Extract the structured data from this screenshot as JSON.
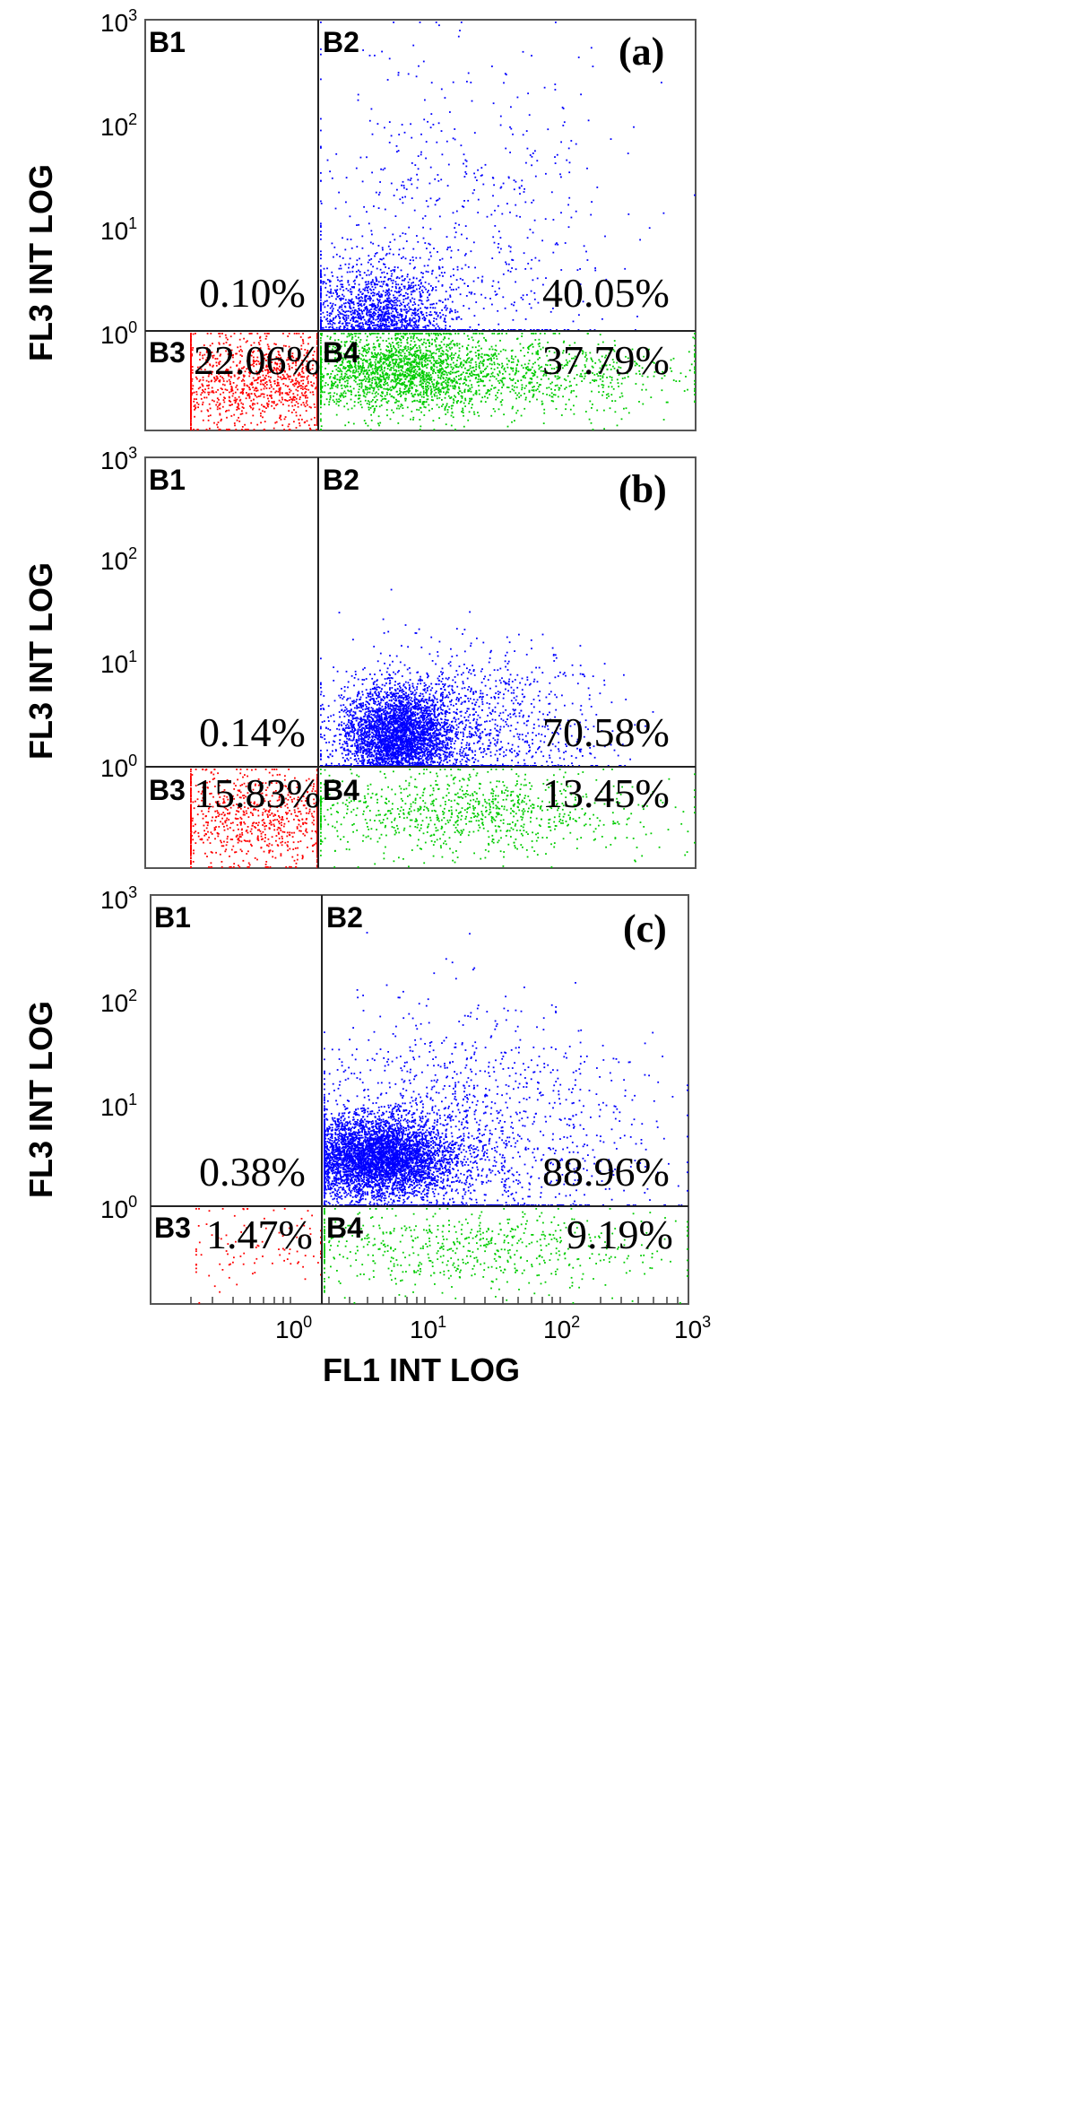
{
  "chart_data": [
    {
      "type": "scatter",
      "title": "(a)",
      "xlabel": "FL1 INT LOG",
      "ylabel": "FL3 INT LOG",
      "xscale": "log",
      "yscale": "log",
      "xlim": [
        0.1,
        1000
      ],
      "ylim": [
        0.1,
        1000
      ],
      "x_ticks": [
        "10^0",
        "10^1",
        "10^2",
        "10^3"
      ],
      "y_ticks": [
        "10^3",
        "10^2",
        "10^1",
        "10^0"
      ],
      "gate": {
        "x": 1.9,
        "y": 1
      },
      "quadrants": [
        {
          "name": "B1",
          "percent": "0.10%"
        },
        {
          "name": "B2",
          "percent": "40.05%"
        },
        {
          "name": "B3",
          "percent": "22.06%"
        },
        {
          "name": "B4",
          "percent": "37.79%"
        }
      ],
      "colors": {
        "B2": "#0000ff",
        "B3": "#ff0000",
        "B4": "#00cc00"
      }
    },
    {
      "type": "scatter",
      "title": "(b)",
      "xlabel": "",
      "ylabel": "FL3 INT LOG",
      "xscale": "log",
      "yscale": "log",
      "xlim": [
        0.1,
        1000
      ],
      "ylim": [
        0.1,
        1000
      ],
      "y_ticks": [
        "10^3",
        "10^2",
        "10^1",
        "10^0"
      ],
      "gate": {
        "x": 1.9,
        "y": 1
      },
      "quadrants": [
        {
          "name": "B1",
          "percent": "0.14%"
        },
        {
          "name": "B2",
          "percent": "70.58%"
        },
        {
          "name": "B3",
          "percent": "15.83%"
        },
        {
          "name": "B4",
          "percent": "13.45%"
        }
      ],
      "colors": {
        "B2": "#0000ff",
        "B3": "#ff0000",
        "B4": "#00cc00"
      }
    },
    {
      "type": "scatter",
      "title": "(c)",
      "xlabel": "FL1 INT LOG",
      "ylabel": "FL3 INT LOG",
      "xscale": "log",
      "yscale": "log",
      "xlim": [
        0.1,
        1000
      ],
      "ylim": [
        0.1,
        1000
      ],
      "x_ticks": [
        "10^0",
        "10^1",
        "10^2",
        "10^3"
      ],
      "y_ticks": [
        "10^3",
        "10^2",
        "10^1",
        "10^0"
      ],
      "gate": {
        "x": 1.9,
        "y": 1
      },
      "quadrants": [
        {
          "name": "B1",
          "percent": "0.38%"
        },
        {
          "name": "B2",
          "percent": "88.96%"
        },
        {
          "name": "B3",
          "percent": "1.47%"
        },
        {
          "name": "B4",
          "percent": "9.19%"
        }
      ],
      "colors": {
        "B2": "#0000ff",
        "B3": "#ff0000",
        "B4": "#00cc00"
      }
    }
  ],
  "labels": {
    "ylabel": "FL3 INT LOG",
    "xlabel": "FL1 INT LOG",
    "tick_base": "10",
    "exp0": "0",
    "exp1": "1",
    "exp2": "2",
    "exp3": "3"
  }
}
